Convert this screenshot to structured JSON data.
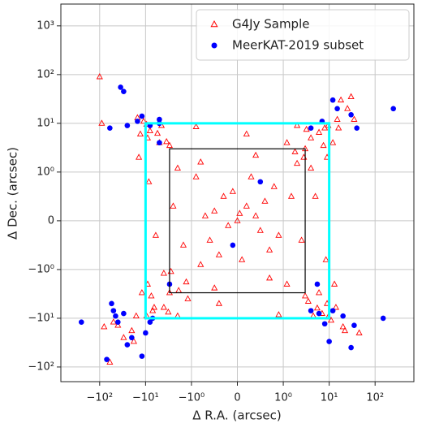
{
  "chart_data": {
    "type": "scatter",
    "scale": "symlog",
    "linthresh": 1,
    "xlabel": "Δ R.A. (arcsec)",
    "ylabel": "Δ Dec. (arcsec)",
    "xlim": [
      -700,
      700
    ],
    "ylim": [
      -200,
      2800
    ],
    "grid": true,
    "legend": "upper right",
    "xticks": [
      {
        "value": -100,
        "label": "−10²"
      },
      {
        "value": -10,
        "label": "−10¹"
      },
      {
        "value": -1,
        "label": "−10⁰"
      },
      0,
      {
        "value": 1,
        "label": "10⁰"
      },
      {
        "value": 10,
        "label": "10¹"
      },
      {
        "value": 100,
        "label": "10²"
      }
    ],
    "yticks": [
      {
        "value": -100,
        "label": "−10²"
      },
      {
        "value": -10,
        "label": "−10¹"
      },
      {
        "value": -1,
        "label": "−10⁰"
      },
      0,
      {
        "value": 1,
        "label": "10⁰"
      },
      {
        "value": 10,
        "label": "10¹"
      },
      {
        "value": 100,
        "label": "10²"
      },
      {
        "value": 1000,
        "label": "10³"
      }
    ],
    "regions": [
      {
        "edge": 10,
        "color": "#00ffff"
      },
      {
        "edge": 3,
        "color": "#000000"
      }
    ],
    "series": [
      {
        "name": "G4Jy Sample",
        "color": "#ff0000",
        "marker": "triangle",
        "x": [
          0,
          0.2,
          -0.3,
          0.5,
          -0.6,
          0.8,
          -0.9,
          0.1,
          -0.2,
          0.4,
          -0.5,
          0.7,
          -0.8,
          0.3,
          -0.1,
          0.6,
          -0.4,
          0.9,
          -0.7,
          0.05,
          1.5,
          -1.5,
          2,
          -2,
          1.2,
          -1.3,
          2.5,
          -2.5,
          0.4,
          -0.5,
          1.8,
          -1.9,
          2.8,
          -2.8,
          0.7,
          -0.8,
          4,
          -5,
          6,
          -4,
          8,
          -8,
          7,
          -7,
          5,
          -6,
          0.2,
          -0.4,
          3.5,
          -3.5,
          9,
          -9,
          2,
          -2,
          4.5,
          -4.5,
          9,
          -9,
          6,
          -6.5,
          3.2,
          -3.2,
          7.5,
          -7.5,
          1.2,
          -1.2,
          4,
          -4,
          8.5,
          -8.5,
          0.9,
          -0.9,
          5.5,
          -5.5,
          3,
          -3,
          3,
          -3,
          9.5,
          -9.5,
          9.5,
          -9.5,
          15,
          -15,
          20,
          -20,
          12,
          -12,
          14,
          -13,
          25,
          -30,
          11,
          -11,
          18,
          -18,
          35,
          -40,
          -100,
          -90,
          -80,
          -60,
          -50,
          22,
          30,
          13,
          -14,
          45,
          16,
          -16
        ],
        "y": [
          0,
          0.3,
          0.5,
          -0.2,
          -0.4,
          0.7,
          0.9,
          -0.8,
          -0.1,
          0.1,
          0.2,
          -0.6,
          -0.9,
          0.9,
          0.6,
          0.4,
          -0.7,
          -0.3,
          0.1,
          0.15,
          0.5,
          -0.5,
          1.5,
          1.2,
          -2,
          -1.8,
          -0.4,
          0.3,
          2.2,
          -2.4,
          2.6,
          -2.7,
          2,
          -1.1,
          -1.5,
          1.6,
          5,
          4,
          -3,
          -6,
          8,
          7,
          -8,
          -7,
          0.5,
          -0.3,
          6,
          -5,
          -4.5,
          4.2,
          2,
          -2,
          9,
          -9,
          -9,
          9,
          -5,
          5,
          6.5,
          -6,
          7.5,
          -7.5,
          3.5,
          -3.5,
          4,
          -4,
          1.2,
          -1.2,
          -0.8,
          0.8,
          -8.5,
          8.5,
          -6.2,
          6.2,
          3,
          -3,
          -3.5,
          3.5,
          9,
          -9,
          -9.5,
          9.5,
          12,
          13,
          -15,
          -18,
          4,
          -3,
          -6,
          6,
          20,
          -25,
          -11,
          11,
          30,
          -30,
          12,
          -14,
          90,
          10,
          -15,
          -80,
          -12,
          -18,
          35,
          -2,
          2,
          -20,
          8,
          -9
        ]
      },
      {
        "name": "MeerKAT-2019 subset",
        "color": "#0000ff",
        "marker": "circle",
        "x": [
          -35,
          -60,
          -25,
          -15,
          -8,
          -5,
          -50,
          -40,
          -30,
          -20,
          -10,
          -7,
          -250,
          -70,
          -25,
          -12,
          -5,
          -12,
          40,
          15,
          12,
          30,
          10,
          8,
          20,
          35,
          150,
          250,
          4,
          -30,
          -3,
          -0.1,
          0.5,
          4,
          -5,
          5.5,
          -8,
          7,
          -45,
          -55,
          12,
          30,
          6
        ],
        "y": [
          55,
          8,
          9,
          11,
          9,
          10,
          -7,
          -12,
          -8,
          -25,
          -20,
          -10,
          -12,
          -70,
          -35,
          -60,
          12,
          14,
          8,
          20,
          30,
          15,
          -30,
          -13,
          -9,
          -14,
          -10,
          20,
          8,
          45,
          -2,
          -0.5,
          0.8,
          -7,
          4,
          -2,
          -12,
          11,
          -9,
          -5,
          -7,
          -40,
          -8
        ]
      }
    ]
  }
}
